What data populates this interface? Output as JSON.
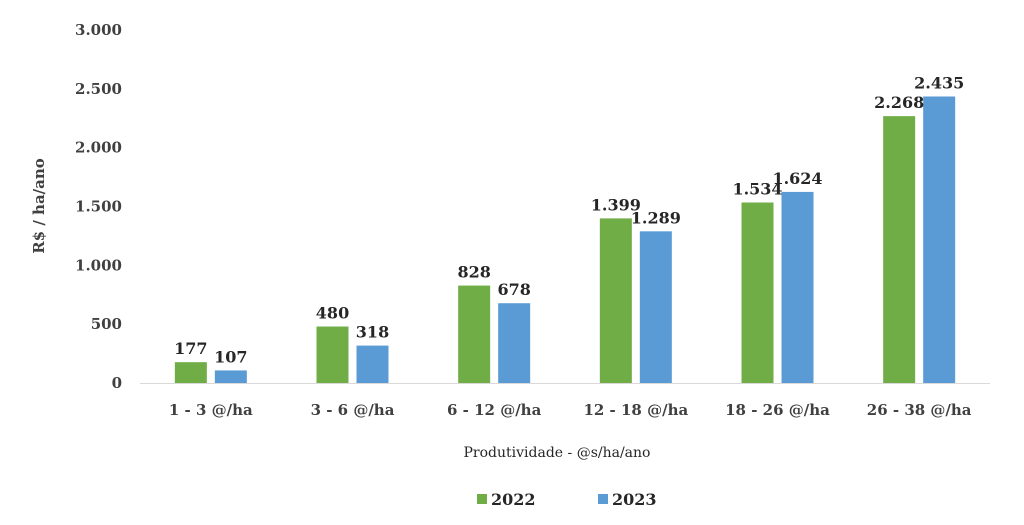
{
  "chart_data": {
    "type": "bar",
    "categories": [
      "1 - 3 @/ha",
      "3 - 6 @/ha",
      "6 - 12 @/ha",
      "12 - 18 @/ha",
      "18 - 26 @/ha",
      "26 - 38 @/ha"
    ],
    "series": [
      {
        "name": "2022",
        "values": [
          177,
          480,
          828,
          1399,
          1534,
          2268
        ],
        "labels": [
          "177",
          "480",
          "828",
          "1.399",
          "1.534",
          "2.268"
        ],
        "color": "#70ad47"
      },
      {
        "name": "2023",
        "values": [
          107,
          318,
          678,
          1289,
          1624,
          2435
        ],
        "labels": [
          "107",
          "318",
          "678",
          "1.289",
          "1.624",
          "2.435"
        ],
        "color": "#5b9bd5"
      }
    ],
    "title": "",
    "xlabel": "Produtividade - @s/ha/ano",
    "ylabel": "R$ / ha/ano",
    "ylim": [
      0,
      3000
    ],
    "yticks": [
      0,
      500,
      1000,
      1500,
      2000,
      2500,
      3000
    ],
    "ytick_labels": [
      "0",
      "500",
      "1.000",
      "1.500",
      "2.000",
      "2.500",
      "3.000"
    ],
    "grid": false,
    "legend_position": "bottom",
    "axis_color": "#d9d9d9"
  }
}
